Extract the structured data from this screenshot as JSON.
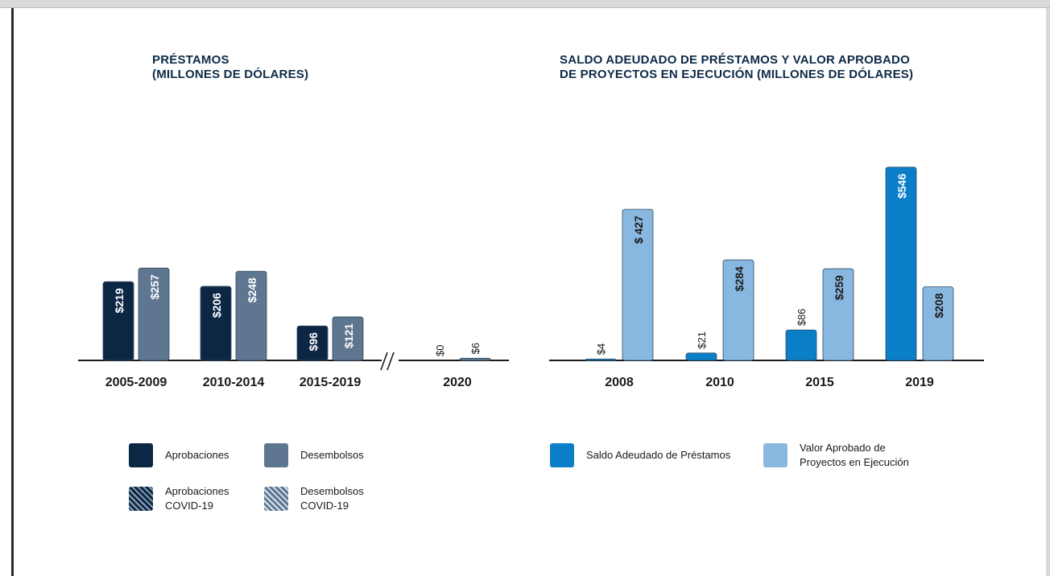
{
  "colors": {
    "aprobaciones": "#0c2744",
    "desembolsos": "#5f7690",
    "saldo": "#0a7fc8",
    "valor": "#88b8df",
    "title": "#0e2a47"
  },
  "chart_data": [
    {
      "type": "bar",
      "title": [
        "PRÉSTAMOS",
        "(MILLONES DE DÓLARES)"
      ],
      "categories": [
        "2005-2009",
        "2010-2014",
        "2015-2019",
        "2020"
      ],
      "axis_break_after": "2015-2019",
      "series": [
        {
          "name": "Aprobaciones",
          "values": [
            219,
            206,
            96,
            0
          ],
          "labels": [
            "$219",
            "$206",
            "$96",
            "$0"
          ]
        },
        {
          "name": "Desembolsos",
          "values": [
            257,
            248,
            121,
            6
          ],
          "labels": [
            "$257",
            "$248",
            "$121",
            "$6"
          ]
        }
      ],
      "ylim": [
        0,
        260
      ],
      "legend": [
        {
          "label": [
            "Aprobaciones"
          ],
          "pattern": false
        },
        {
          "label": [
            "Desembolsos"
          ],
          "pattern": false
        },
        {
          "label": [
            "Aprobaciones",
            "COVID-19"
          ],
          "pattern": true
        },
        {
          "label": [
            "Desembolsos",
            "COVID-19"
          ],
          "pattern": true
        }
      ]
    },
    {
      "type": "bar",
      "title": [
        "SALDO ADEUDADO DE PRÉSTAMOS Y VALOR APROBADO",
        "DE PROYECTOS EN EJECUCIÓN (MILLONES DE DÓLARES)"
      ],
      "categories": [
        "2008",
        "2010",
        "2015",
        "2019"
      ],
      "series": [
        {
          "name": "Saldo Adeudado de Préstamos",
          "values": [
            4,
            21,
            86,
            546
          ],
          "labels": [
            "$4",
            "$21",
            "$86",
            "$546"
          ]
        },
        {
          "name": "Valor Aprobado de Proyectos en Ejecución",
          "values": [
            427,
            284,
            259,
            208
          ],
          "labels": [
            "$ 427",
            "$284",
            "$259",
            "$208"
          ]
        }
      ],
      "ylim": [
        0,
        550
      ],
      "legend": [
        {
          "label": [
            "Saldo Adeudado de Préstamos"
          ]
        },
        {
          "label": [
            "Valor Aprobado de",
            "Proyectos en Ejecución"
          ]
        }
      ]
    }
  ]
}
